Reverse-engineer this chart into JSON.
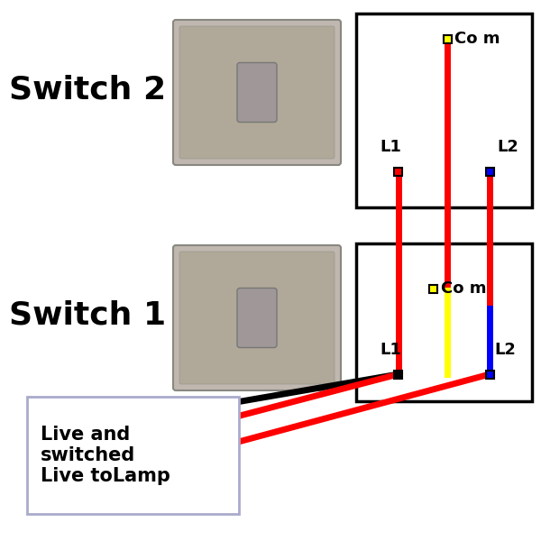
{
  "switch2_label": "Switch 2",
  "switch1_label": "Switch 1",
  "legend_text": "Live and\nswitched\nLive toLamp",
  "switch_plate_color": "#c0b8b0",
  "switch_plate_inner_color": "#b0a898",
  "switch_rocker_color": "#a09898",
  "wire_colors": {
    "red": "#ff0000",
    "yellow": "#ffff00",
    "blue": "#0000ff",
    "black": "#000000"
  },
  "lw": 5,
  "terminal_size": 9,
  "background_color": "#ffffff",
  "legend_box_color": "#aaaacc",
  "font_size_switch": 26,
  "font_size_terminal": 13,
  "font_size_legend": 15
}
